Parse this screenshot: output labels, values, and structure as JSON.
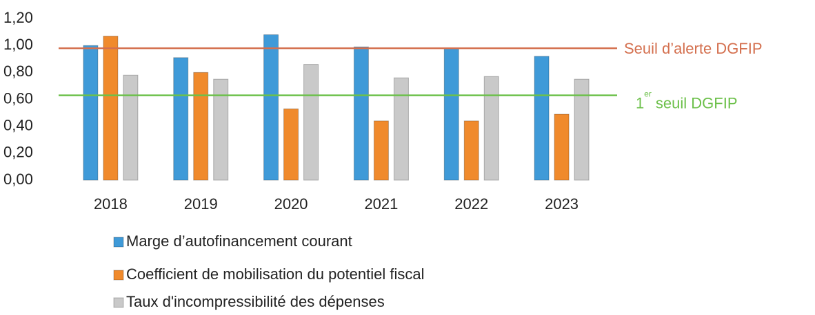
{
  "chart_data": {
    "type": "bar",
    "categories": [
      "2018",
      "2019",
      "2020",
      "2021",
      "2022",
      "2023"
    ],
    "series": [
      {
        "name": "Marge d’autofinancement courant",
        "color": "#3f9ad8",
        "values": [
          1.0,
          0.91,
          1.08,
          0.99,
          0.98,
          0.92
        ]
      },
      {
        "name": "Coefficient de mobilisation du potentiel fiscal",
        "color": "#f08a2c",
        "values": [
          1.07,
          0.8,
          0.53,
          0.44,
          0.44,
          0.49
        ]
      },
      {
        "name": "Taux d'incompressibilité des dépenses",
        "color": "#c9c9c9",
        "values": [
          0.78,
          0.75,
          0.86,
          0.76,
          0.77,
          0.75
        ]
      }
    ],
    "thresholds": [
      {
        "label": [
          "Seuil d’alerte DGFIP"
        ],
        "value": 0.98,
        "color": "#d4704f"
      },
      {
        "label": [
          "1",
          "er",
          "seuil DGFIP"
        ],
        "value": 0.63,
        "color": "#6cc04a"
      }
    ],
    "ylim": [
      0,
      1.2
    ],
    "yticks": [
      {
        "value": 0,
        "label": "0,00"
      },
      {
        "value": 0.2,
        "label": "0,20"
      },
      {
        "value": 0.4,
        "label": "0,40"
      },
      {
        "value": 0.6,
        "label": "0,60"
      },
      {
        "value": 0.8,
        "label": "0,80"
      },
      {
        "value": 1.0,
        "label": "1,00"
      },
      {
        "value": 1.2,
        "label": "1,20"
      }
    ],
    "grid": false
  }
}
